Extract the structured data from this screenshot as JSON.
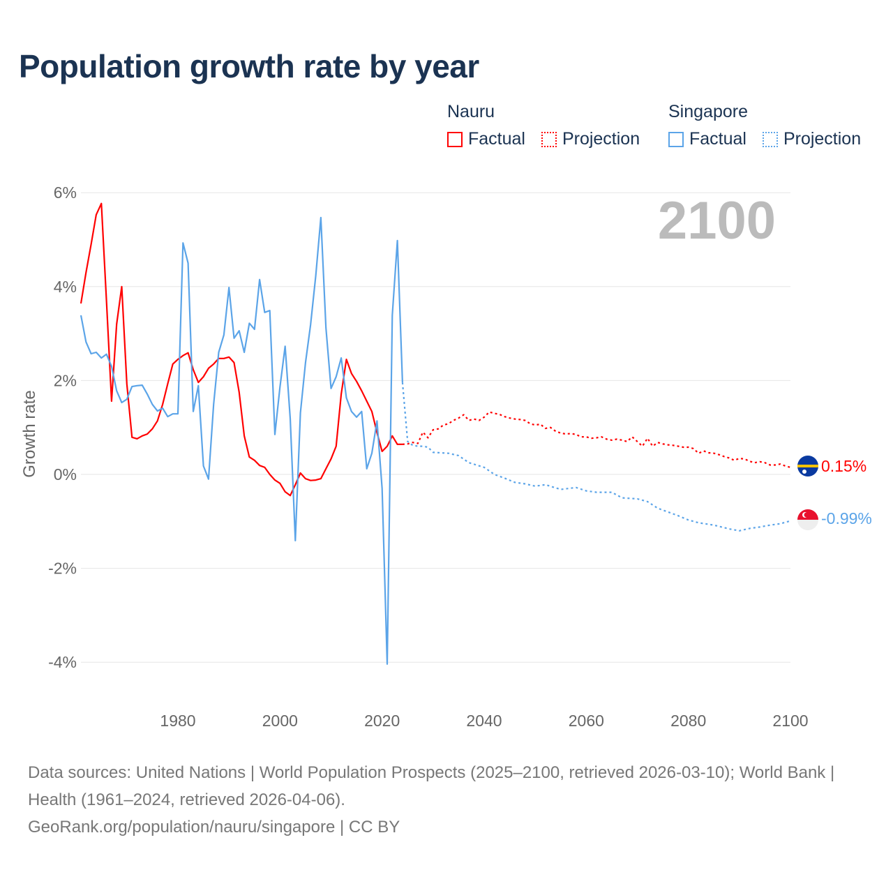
{
  "title": "Population growth rate by year",
  "legend": {
    "groups": [
      {
        "name": "Nauru",
        "factual": "Factual",
        "projection": "Projection",
        "color": "#ff0000"
      },
      {
        "name": "Singapore",
        "factual": "Factual",
        "projection": "Projection",
        "color": "#5ba4e8"
      }
    ]
  },
  "year_indicator": "2100",
  "end_labels": {
    "nauru": "0.15%",
    "singapore": "-0.99%"
  },
  "footer": {
    "sources": "Data sources: United Nations | World Population Prospects (2025–2100, retrieved 2026-03-10); World Bank | Health (1961–2024, retrieved 2026-04-06).",
    "credit": "GeoRank.org/population/nauru/singapore | CC BY"
  },
  "chart_data": {
    "type": "line",
    "title": "Population growth rate by year",
    "xlabel": "",
    "ylabel": "Growth rate",
    "xlim": [
      1961,
      2100
    ],
    "ylim": [
      -4.6,
      6
    ],
    "x_ticks": [
      1980,
      2000,
      2020,
      2040,
      2060,
      2080,
      2100
    ],
    "x_tick_labels": [
      "1980",
      "2000",
      "2020",
      "2040",
      "2060",
      "2080",
      "2100"
    ],
    "y_ticks": [
      6,
      4,
      2,
      0,
      -2,
      -4
    ],
    "y_tick_labels": [
      "6%",
      "4%",
      "2%",
      "0%",
      "-2%",
      "-4%"
    ],
    "grid": true,
    "legend_position": "top-right",
    "series": [
      {
        "name": "Nauru Factual",
        "color": "#ff0000",
        "dash": "solid",
        "x": [
          1961,
          1962,
          1963,
          1964,
          1965,
          1966,
          1967,
          1968,
          1969,
          1970,
          1971,
          1972,
          1973,
          1974,
          1975,
          1976,
          1977,
          1978,
          1979,
          1980,
          1981,
          1982,
          1983,
          1984,
          1985,
          1986,
          1987,
          1988,
          1989,
          1990,
          1991,
          1992,
          1993,
          1994,
          1995,
          1996,
          1997,
          1998,
          1999,
          2000,
          2001,
          2002,
          2003,
          2004,
          2005,
          2006,
          2007,
          2008,
          2009,
          2010,
          2011,
          2012,
          2013,
          2014,
          2015,
          2016,
          2017,
          2018,
          2019,
          2020,
          2021,
          2022,
          2023,
          2024
        ],
        "y": [
          3.64,
          4.3,
          4.9,
          5.53,
          5.77,
          3.7,
          1.56,
          3.2,
          4.0,
          1.93,
          0.79,
          0.76,
          0.82,
          0.86,
          0.97,
          1.14,
          1.49,
          1.93,
          2.35,
          2.45,
          2.53,
          2.59,
          2.23,
          1.96,
          2.08,
          2.26,
          2.35,
          2.47,
          2.47,
          2.5,
          2.38,
          1.75,
          0.82,
          0.37,
          0.3,
          0.19,
          0.15,
          0.0,
          -0.12,
          -0.19,
          -0.37,
          -0.45,
          -0.22,
          0.03,
          -0.09,
          -0.13,
          -0.12,
          -0.09,
          0.12,
          0.33,
          0.6,
          1.71,
          2.45,
          2.15,
          1.98,
          1.78,
          1.56,
          1.34,
          0.89,
          0.49,
          0.6,
          0.82,
          0.64,
          0.64
        ]
      },
      {
        "name": "Nauru Projection",
        "color": "#ff0000",
        "dash": "dotted",
        "x": [
          2024,
          2025,
          2026,
          2027,
          2028,
          2029,
          2030,
          2031,
          2032,
          2033,
          2034,
          2035,
          2036,
          2037,
          2038,
          2039,
          2040,
          2041,
          2042,
          2043,
          2044,
          2045,
          2046,
          2047,
          2048,
          2049,
          2050,
          2051,
          2052,
          2053,
          2054,
          2055,
          2056,
          2057,
          2058,
          2059,
          2060,
          2061,
          2062,
          2063,
          2064,
          2065,
          2066,
          2067,
          2068,
          2069,
          2070,
          2071,
          2072,
          2073,
          2074,
          2075,
          2076,
          2077,
          2078,
          2079,
          2080,
          2081,
          2082,
          2083,
          2084,
          2085,
          2086,
          2087,
          2088,
          2089,
          2090,
          2091,
          2092,
          2093,
          2094,
          2095,
          2096,
          2097,
          2098,
          2099,
          2100
        ],
        "y": [
          0.64,
          0.65,
          0.68,
          0.66,
          0.9,
          0.78,
          0.95,
          0.97,
          1.05,
          1.08,
          1.15,
          1.2,
          1.27,
          1.15,
          1.18,
          1.15,
          1.22,
          1.33,
          1.3,
          1.28,
          1.23,
          1.2,
          1.18,
          1.17,
          1.15,
          1.08,
          1.05,
          1.07,
          0.98,
          1.0,
          0.92,
          0.88,
          0.86,
          0.87,
          0.85,
          0.8,
          0.8,
          0.77,
          0.78,
          0.8,
          0.75,
          0.73,
          0.75,
          0.73,
          0.7,
          0.8,
          0.7,
          0.6,
          0.77,
          0.6,
          0.68,
          0.65,
          0.63,
          0.62,
          0.6,
          0.58,
          0.58,
          0.55,
          0.45,
          0.5,
          0.46,
          0.45,
          0.42,
          0.38,
          0.35,
          0.3,
          0.34,
          0.33,
          0.28,
          0.25,
          0.27,
          0.25,
          0.2,
          0.2,
          0.22,
          0.18,
          0.15
        ]
      },
      {
        "name": "Singapore Factual",
        "color": "#5ba4e8",
        "dash": "solid",
        "x": [
          1961,
          1962,
          1963,
          1964,
          1965,
          1966,
          1967,
          1968,
          1969,
          1970,
          1971,
          1972,
          1973,
          1974,
          1975,
          1976,
          1977,
          1978,
          1979,
          1980,
          1981,
          1982,
          1983,
          1984,
          1985,
          1986,
          1987,
          1988,
          1989,
          1990,
          1991,
          1992,
          1993,
          1994,
          1995,
          1996,
          1997,
          1998,
          1999,
          2000,
          2001,
          2002,
          2003,
          2004,
          2005,
          2006,
          2007,
          2008,
          2009,
          2010,
          2011,
          2012,
          2013,
          2014,
          2015,
          2016,
          2017,
          2018,
          2019,
          2020,
          2021,
          2022,
          2023,
          2024
        ],
        "y": [
          3.39,
          2.82,
          2.57,
          2.6,
          2.48,
          2.56,
          2.3,
          1.78,
          1.53,
          1.6,
          1.87,
          1.89,
          1.9,
          1.71,
          1.49,
          1.35,
          1.41,
          1.23,
          1.29,
          1.29,
          4.93,
          4.5,
          1.34,
          1.89,
          0.18,
          -0.1,
          1.49,
          2.6,
          2.97,
          3.98,
          2.9,
          3.06,
          2.6,
          3.22,
          3.09,
          4.15,
          3.45,
          3.49,
          0.85,
          1.86,
          2.73,
          1.19,
          -1.41,
          1.31,
          2.38,
          3.19,
          4.23,
          5.47,
          3.12,
          1.83,
          2.08,
          2.48,
          1.63,
          1.34,
          1.22,
          1.34,
          0.12,
          0.45,
          1.14,
          -0.3,
          -4.04,
          3.39,
          4.98,
          1.96
        ]
      },
      {
        "name": "Singapore Projection",
        "color": "#5ba4e8",
        "dash": "dotted",
        "x": [
          2024,
          2025,
          2026,
          2027,
          2028,
          2029,
          2030,
          2033,
          2035,
          2037,
          2040,
          2042,
          2044,
          2046,
          2048,
          2050,
          2052,
          2055,
          2058,
          2060,
          2062,
          2065,
          2067,
          2070,
          2072,
          2074,
          2076,
          2078,
          2080,
          2082,
          2085,
          2088,
          2090,
          2092,
          2094,
          2096,
          2098,
          2100
        ],
        "y": [
          1.96,
          0.7,
          0.62,
          0.6,
          0.6,
          0.58,
          0.47,
          0.45,
          0.4,
          0.25,
          0.15,
          0.0,
          -0.08,
          -0.17,
          -0.2,
          -0.25,
          -0.22,
          -0.32,
          -0.28,
          -0.35,
          -0.38,
          -0.38,
          -0.5,
          -0.52,
          -0.58,
          -0.72,
          -0.8,
          -0.88,
          -0.97,
          -1.03,
          -1.08,
          -1.16,
          -1.2,
          -1.15,
          -1.12,
          -1.08,
          -1.05,
          -0.99
        ]
      }
    ]
  }
}
